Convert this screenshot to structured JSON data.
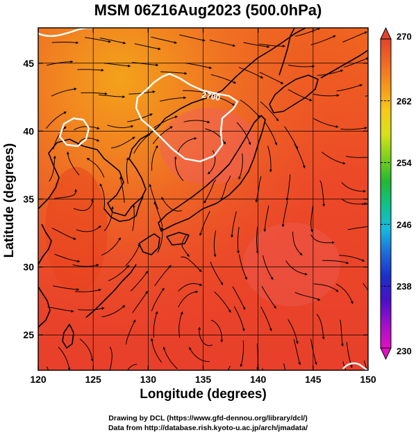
{
  "title": "MSM 06Z16Aug2023 (500.0hPa)",
  "x_axis": {
    "label": "Longitude (degrees)",
    "ticks": [
      "120",
      "125",
      "130",
      "135",
      "140",
      "145",
      "150"
    ],
    "range": [
      120,
      150
    ]
  },
  "y_axis": {
    "label": "Latitude  (degrees)",
    "ticks": [
      "25",
      "30",
      "35",
      "40",
      "45"
    ],
    "range": [
      22.4,
      47.6
    ]
  },
  "colorbar": {
    "ticks": [
      "270",
      "262",
      "254",
      "246",
      "238",
      "230"
    ],
    "range": [
      230,
      270
    ],
    "colors_top_to_bottom": [
      "#e0442c",
      "#ef6a24",
      "#f6961c",
      "#f8c81a",
      "#d8e21a",
      "#7cd01c",
      "#22b832",
      "#10c28c",
      "#18b8e0",
      "#1d6cd8",
      "#1c2ec8",
      "#4a10c8",
      "#a010c8",
      "#e010c0"
    ]
  },
  "contour_label": "2700",
  "credits": {
    "line1": "Drawing by DCL (https://www.gfd-dennou.org/library/dcl/)",
    "line2": "Data from http://database.rish.kyoto-u.ac.jp/arch/jmadata/"
  },
  "colors": {
    "background_field": "#ee4528",
    "warm_north": "#f08a1c",
    "land_line": "#000000",
    "contour": "#ffffff"
  }
}
